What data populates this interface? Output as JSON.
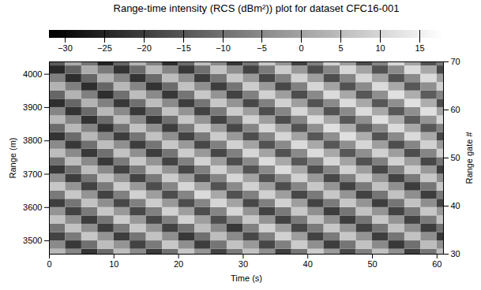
{
  "chart_data": {
    "type": "heatmap",
    "title": "Range-time intensity (RCS (dBm²)) plot for dataset CFC16-001",
    "xlabel": "Time (s)",
    "ylabel": "Range (m)",
    "y2label": "Range gate #",
    "xlim": [
      0,
      61
    ],
    "xticks": [
      0,
      10,
      20,
      30,
      40,
      50,
      60
    ],
    "ylim": [
      3460,
      4037
    ],
    "yticks": [
      3500,
      3600,
      3700,
      3800,
      3900,
      4000
    ],
    "y2lim": [
      30,
      70
    ],
    "y2ticks": [
      30,
      40,
      50,
      60,
      70
    ],
    "colorbar": {
      "range": [
        -32,
        18
      ],
      "ticks": [
        -30,
        -25,
        -20,
        -15,
        -10,
        -5,
        0,
        5,
        10,
        15
      ],
      "colors": [
        "#000000",
        "#ffffff"
      ]
    },
    "cells": {
      "x_edges": [
        0,
        2.5,
        5,
        7.5,
        10,
        12.5,
        15,
        17.5,
        20,
        22.5,
        25,
        27.5,
        30,
        32.5,
        35,
        37.5,
        40,
        42.5,
        45,
        47.5,
        50,
        52.5,
        55,
        57.5,
        60,
        62.5
      ],
      "y_edges": [
        3450,
        3475,
        3500,
        3525,
        3550,
        3575,
        3600,
        3625,
        3650,
        3675,
        3700,
        3725,
        3750,
        3775,
        3800,
        3825,
        3850,
        3875,
        3900,
        3925,
        3950,
        3975,
        4000,
        4025,
        4050
      ],
      "values": [
        [
          4,
          -6,
          -22,
          -11,
          5,
          -5,
          -21,
          -10,
          7,
          -3,
          -19,
          -8,
          6,
          -4,
          -20,
          -9,
          8,
          -2,
          -18,
          -7,
          6,
          -4,
          -20,
          -9,
          5
        ],
        [
          -5,
          -21,
          -10,
          5,
          -3,
          -19,
          -8,
          7,
          -4,
          -20,
          -9,
          6,
          -2,
          -18,
          -7,
          8,
          -4,
          -20,
          -9,
          6,
          -5,
          -21,
          -10,
          5,
          -4
        ],
        [
          -19,
          -8,
          7,
          -3,
          -20,
          -9,
          6,
          -4,
          -21,
          -10,
          5,
          -5,
          -18,
          -7,
          9,
          -1,
          -19,
          -8,
          7,
          -3,
          -20,
          -9,
          6,
          -4,
          -21
        ],
        [
          -9,
          6,
          -4,
          -20,
          -8,
          7,
          -3,
          -19,
          -10,
          5,
          -5,
          -21,
          -7,
          9,
          -1,
          -18,
          -8,
          7,
          -3,
          -19,
          -9,
          6,
          -4,
          -20,
          -10
        ],
        [
          6,
          -4,
          -20,
          -9,
          8,
          -2,
          -18,
          -7,
          9,
          -1,
          -17,
          -6,
          7,
          -3,
          -19,
          -8,
          6,
          -4,
          -20,
          -9,
          7,
          -3,
          -19,
          -8,
          6
        ],
        [
          -3,
          -19,
          -8,
          7,
          -2,
          -18,
          -7,
          9,
          -1,
          -17,
          -6,
          10,
          -3,
          -19,
          -8,
          7,
          -4,
          -20,
          -9,
          6,
          -3,
          -19,
          -8,
          7,
          -2
        ],
        [
          -20,
          -9,
          6,
          -4,
          -18,
          -7,
          8,
          -2,
          -17,
          -6,
          10,
          0,
          -18,
          -7,
          9,
          -1,
          -19,
          -8,
          7,
          -3,
          -20,
          -9,
          6,
          -4,
          -19
        ],
        [
          -8,
          7,
          -3,
          -19,
          -7,
          9,
          -1,
          -17,
          -6,
          11,
          1,
          -16,
          -7,
          9,
          -1,
          -18,
          -8,
          7,
          -3,
          -19,
          -9,
          6,
          -4,
          -20,
          -8
        ],
        [
          7,
          -3,
          -19,
          -8,
          8,
          -2,
          -17,
          -6,
          10,
          0,
          -16,
          -5,
          9,
          -1,
          -17,
          -6,
          7,
          -3,
          -19,
          -8,
          6,
          -4,
          -20,
          -9,
          7
        ],
        [
          -4,
          -20,
          -9,
          6,
          -3,
          -19,
          -8,
          8,
          -1,
          -17,
          -6,
          10,
          0,
          -16,
          -5,
          9,
          -2,
          -18,
          -7,
          8,
          -3,
          -19,
          -8,
          7,
          -4
        ],
        [
          -21,
          -10,
          5,
          -5,
          -19,
          -8,
          7,
          -3,
          -18,
          -7,
          9,
          -1,
          -16,
          -5,
          11,
          1,
          -17,
          -6,
          9,
          -1,
          -18,
          -7,
          8,
          -2,
          -20
        ],
        [
          -10,
          5,
          -5,
          -21,
          -8,
          7,
          -3,
          -19,
          -7,
          9,
          -1,
          -17,
          -5,
          11,
          1,
          -15,
          -6,
          10,
          0,
          -16,
          -7,
          9,
          -1,
          -18,
          -9
        ],
        [
          5,
          -5,
          -21,
          -10,
          6,
          -4,
          -20,
          -9,
          8,
          -2,
          -18,
          -7,
          10,
          0,
          -16,
          -5,
          11,
          1,
          -15,
          -4,
          9,
          -1,
          -17,
          -6,
          8
        ],
        [
          -5,
          -21,
          -10,
          5,
          -4,
          -20,
          -9,
          7,
          -2,
          -18,
          -7,
          9,
          0,
          -16,
          -5,
          11,
          1,
          -15,
          -4,
          10,
          -1,
          -17,
          -6,
          9,
          -2
        ],
        [
          -22,
          -11,
          4,
          -6,
          -20,
          -9,
          6,
          -4,
          -19,
          -8,
          8,
          -2,
          -17,
          -6,
          10,
          0,
          -15,
          -4,
          12,
          2,
          -16,
          -5,
          11,
          1,
          -18
        ],
        [
          -11,
          4,
          -6,
          -22,
          -9,
          6,
          -4,
          -20,
          -8,
          8,
          -2,
          -18,
          -6,
          10,
          0,
          -16,
          -4,
          12,
          2,
          -14,
          -5,
          11,
          1,
          -15,
          -7
        ],
        [
          4,
          -6,
          -22,
          -11,
          5,
          -5,
          -21,
          -10,
          7,
          -3,
          -19,
          -8,
          9,
          -1,
          -17,
          -6,
          11,
          1,
          -15,
          -4,
          12,
          2,
          -14,
          -3,
          10
        ],
        [
          -6,
          -22,
          -11,
          4,
          -5,
          -21,
          -10,
          6,
          -3,
          -19,
          -8,
          8,
          -1,
          -17,
          -6,
          10,
          0,
          -16,
          -5,
          11,
          1,
          -15,
          -4,
          12,
          0
        ],
        [
          -23,
          -12,
          3,
          -7,
          -21,
          -10,
          5,
          -5,
          -20,
          -9,
          7,
          -3,
          -18,
          -7,
          9,
          -1,
          -16,
          -5,
          11,
          1,
          -15,
          -4,
          12,
          2,
          -17
        ],
        [
          -12,
          3,
          -7,
          -23,
          -10,
          5,
          -5,
          -21,
          -9,
          7,
          -3,
          -19,
          -7,
          9,
          -1,
          -17,
          -5,
          11,
          1,
          -15,
          -4,
          12,
          2,
          -14,
          -6
        ],
        [
          3,
          -7,
          -23,
          -12,
          4,
          -6,
          -22,
          -11,
          6,
          -4,
          -20,
          -9,
          8,
          -2,
          -18,
          -7,
          10,
          0,
          -16,
          -5,
          11,
          1,
          -15,
          -4,
          9
        ],
        [
          -7,
          -23,
          -12,
          3,
          -6,
          -22,
          -11,
          5,
          -4,
          -20,
          -9,
          7,
          -2,
          -18,
          -7,
          9,
          -1,
          -17,
          -6,
          10,
          0,
          -16,
          -5,
          11,
          -1
        ],
        [
          -24,
          -13,
          2,
          -8,
          -22,
          -11,
          4,
          -6,
          -21,
          -10,
          6,
          -4,
          -19,
          -8,
          8,
          -2,
          -17,
          -6,
          10,
          0,
          -16,
          -5,
          11,
          1,
          -18
        ],
        [
          -14,
          1,
          -9,
          -25,
          -12,
          3,
          -7,
          -23,
          -11,
          5,
          -5,
          -21,
          -9,
          7,
          -3,
          -19,
          -7,
          9,
          -1,
          -17,
          -6,
          10,
          0,
          -16,
          -8
        ]
      ]
    }
  }
}
